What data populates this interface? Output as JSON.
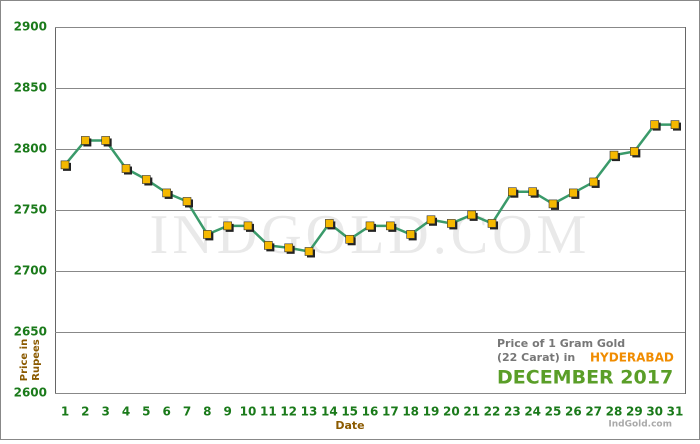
{
  "chart_data": {
    "type": "line",
    "x_label": "Date",
    "y_label": [
      "Price in",
      "Rupees"
    ],
    "categories": [
      "1",
      "2",
      "3",
      "4",
      "5",
      "6",
      "7",
      "8",
      "9",
      "10",
      "11",
      "12",
      "13",
      "14",
      "15",
      "16",
      "17",
      "18",
      "19",
      "20",
      "21",
      "22",
      "23",
      "24",
      "25",
      "26",
      "27",
      "28",
      "29",
      "30",
      "31"
    ],
    "series": [
      {
        "color": "#3a9a6a",
        "marker_color": "#f5b800",
        "values": [
          2787,
          2807,
          2807,
          2784,
          2775,
          2764,
          2757,
          2730,
          2737,
          2737,
          2721,
          2719,
          2716,
          2739,
          2726,
          2737,
          2737,
          2730,
          2742,
          2739,
          2746,
          2739,
          2765,
          2765,
          2755,
          2764,
          2773,
          2795,
          2798,
          2820,
          2820
        ]
      }
    ],
    "ylim": [
      2600,
      2900
    ],
    "yticks": [
      2600,
      2650,
      2700,
      2750,
      2800,
      2850,
      2900
    ],
    "grid": true,
    "watermark": "INDGOLD.COM",
    "annotation": {
      "line1": "Price of 1 Gram Gold",
      "line2": "(22 Carat) in",
      "city": "HYDERABAD",
      "period": "DECEMBER 2017",
      "site": "IndGold.com"
    }
  }
}
